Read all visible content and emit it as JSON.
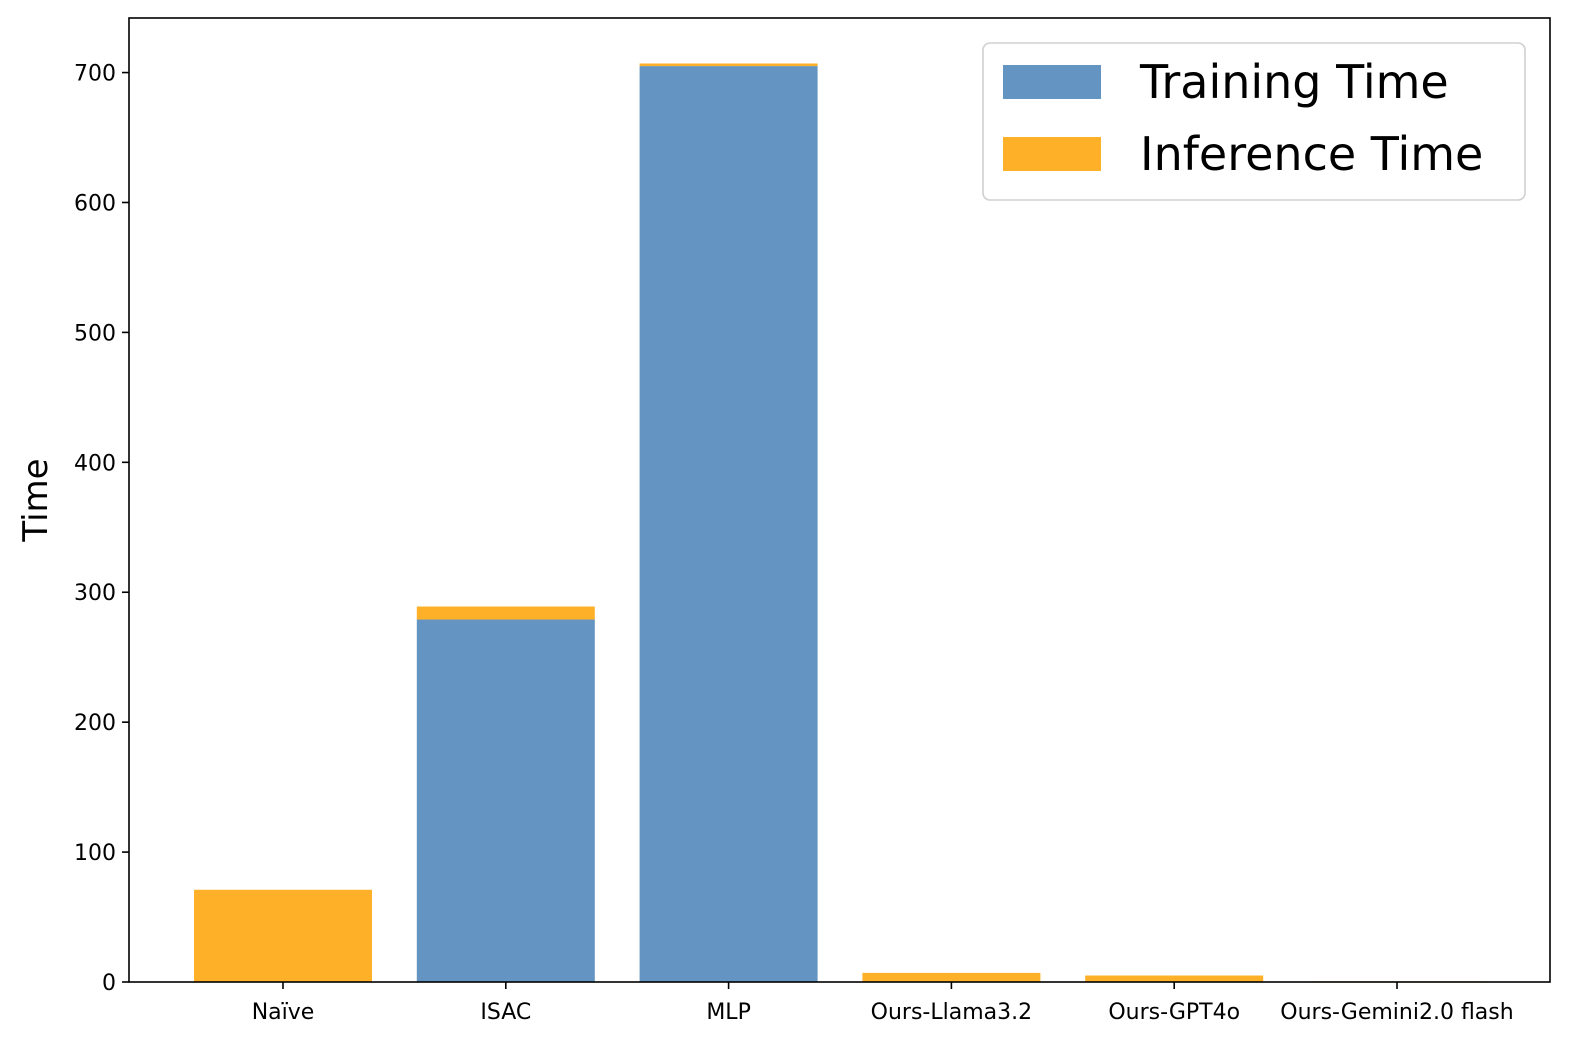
{
  "chart_data": {
    "type": "bar",
    "stacked": true,
    "categories": [
      "Naïve",
      "ISAC",
      "MLP",
      "Ours-Llama3.2",
      "Ours-GPT4o",
      "Ours-Gemini2.0 flash"
    ],
    "series": [
      {
        "name": "Training Time",
        "color": "#6495c2",
        "values": [
          0,
          279,
          705,
          0,
          0,
          0
        ]
      },
      {
        "name": "Inference Time",
        "color": "#feb029",
        "values": [
          71,
          10,
          2,
          7,
          5,
          0.5
        ]
      }
    ],
    "title": "",
    "xlabel": "",
    "ylabel": "Time",
    "ylim": [
      0,
      742
    ],
    "yticks": [
      0,
      100,
      200,
      300,
      400,
      500,
      600,
      700
    ],
    "ytick_labels": [
      "0",
      "100",
      "200",
      "300",
      "400",
      "500",
      "600",
      "700"
    ],
    "grid": false,
    "legend_position": "top-right"
  }
}
